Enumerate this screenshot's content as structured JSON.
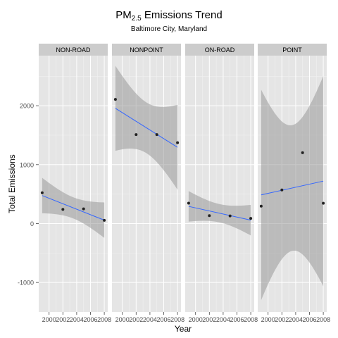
{
  "chart_data": {
    "type": "scatter",
    "title_main": "PM",
    "title_sub": "2.5",
    "title_rest": " Emissions Trend",
    "subtitle": "Baltimore City, Maryland",
    "xlabel": "Year",
    "ylabel": "Total Emissions",
    "xlim": [
      1998.5,
      2008.5
    ],
    "ylim": [
      -1500,
      2850
    ],
    "x_ticks": [
      2000,
      2002,
      2004,
      2006,
      2008
    ],
    "x_tick_labels": [
      "2000",
      "2002",
      "2004",
      "2006",
      "2008"
    ],
    "y_ticks": [
      -1000,
      0,
      1000,
      2000
    ],
    "y_tick_labels": [
      "-1000",
      "0",
      "1000",
      "2000"
    ],
    "grid": true,
    "smooth_method": "linear regression with confidence band",
    "colors": {
      "point": "#222222",
      "line": "#3366ff",
      "band": "#999999",
      "panel": "#e5e5e5",
      "strip": "#cccccc"
    },
    "panels": [
      {
        "name": "NON-ROAD",
        "x": [
          1999,
          2002,
          2005,
          2008
        ],
        "y": [
          522,
          241,
          249,
          55
        ]
      },
      {
        "name": "NONPOINT",
        "x": [
          1999,
          2002,
          2005,
          2008
        ],
        "y": [
          2108,
          1510,
          1510,
          1373
        ]
      },
      {
        "name": "ON-ROAD",
        "x": [
          1999,
          2002,
          2005,
          2008
        ],
        "y": [
          347,
          134,
          130,
          88
        ]
      },
      {
        "name": "POINT",
        "x": [
          1999,
          2002,
          2005,
          2008
        ],
        "y": [
          296,
          570,
          1203,
          345
        ]
      }
    ]
  }
}
